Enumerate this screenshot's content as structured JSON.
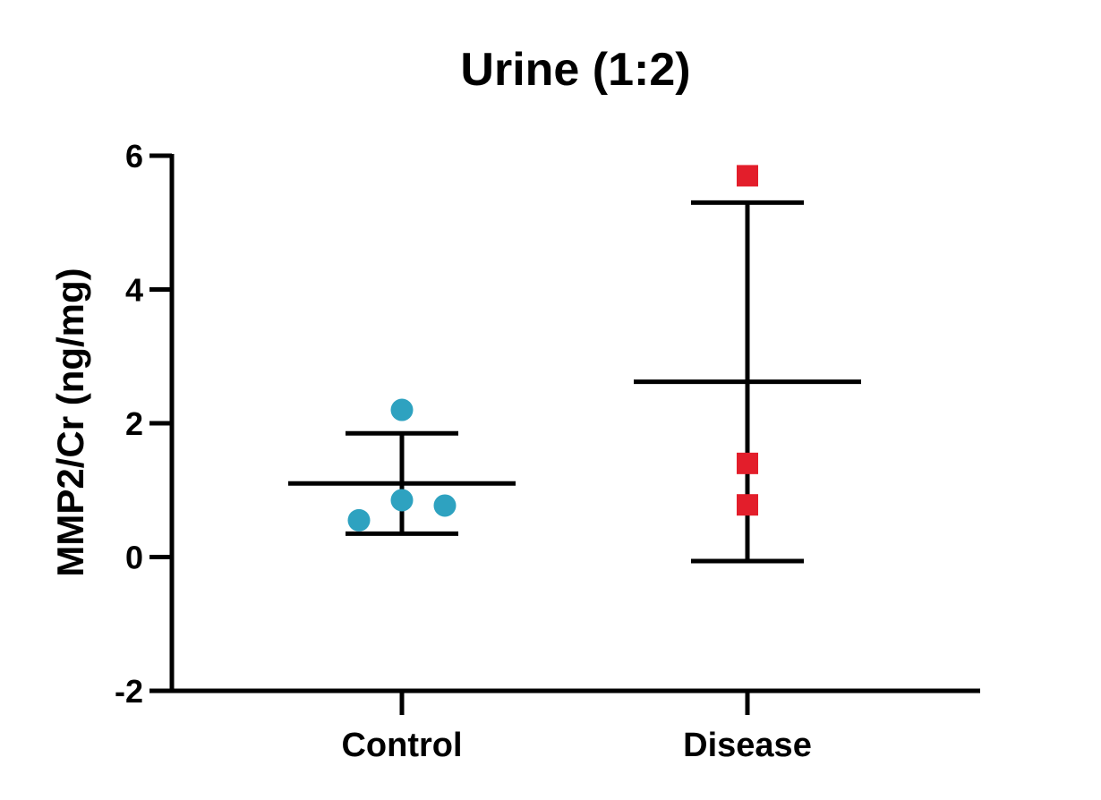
{
  "chart_data": {
    "type": "scatter",
    "title": "Urine (1:2)",
    "xlabel": "",
    "ylabel": "MMP2/Cr (ng/mg)",
    "ylim": [
      -2,
      6
    ],
    "yticks": [
      -2,
      0,
      2,
      4,
      6
    ],
    "grid": false,
    "categories": [
      "Control",
      "Disease"
    ],
    "series": [
      {
        "category": "Control",
        "marker": "circle",
        "color": "#2EA2C0",
        "points": [
          {
            "offset": -1,
            "y": 0.55
          },
          {
            "offset": 0,
            "y": 2.2
          },
          {
            "offset": 0,
            "y": 0.85
          },
          {
            "offset": 1,
            "y": 0.77
          }
        ],
        "mean": 1.1,
        "error_low": 0.35,
        "error_high": 1.85
      },
      {
        "category": "Disease",
        "marker": "square",
        "color": "#E31E2B",
        "points": [
          {
            "offset": 0,
            "y": 5.7
          },
          {
            "offset": 0,
            "y": 1.4
          },
          {
            "offset": 0,
            "y": 0.78
          }
        ],
        "mean": 2.62,
        "error_low": -0.06,
        "error_high": 5.3
      }
    ]
  }
}
